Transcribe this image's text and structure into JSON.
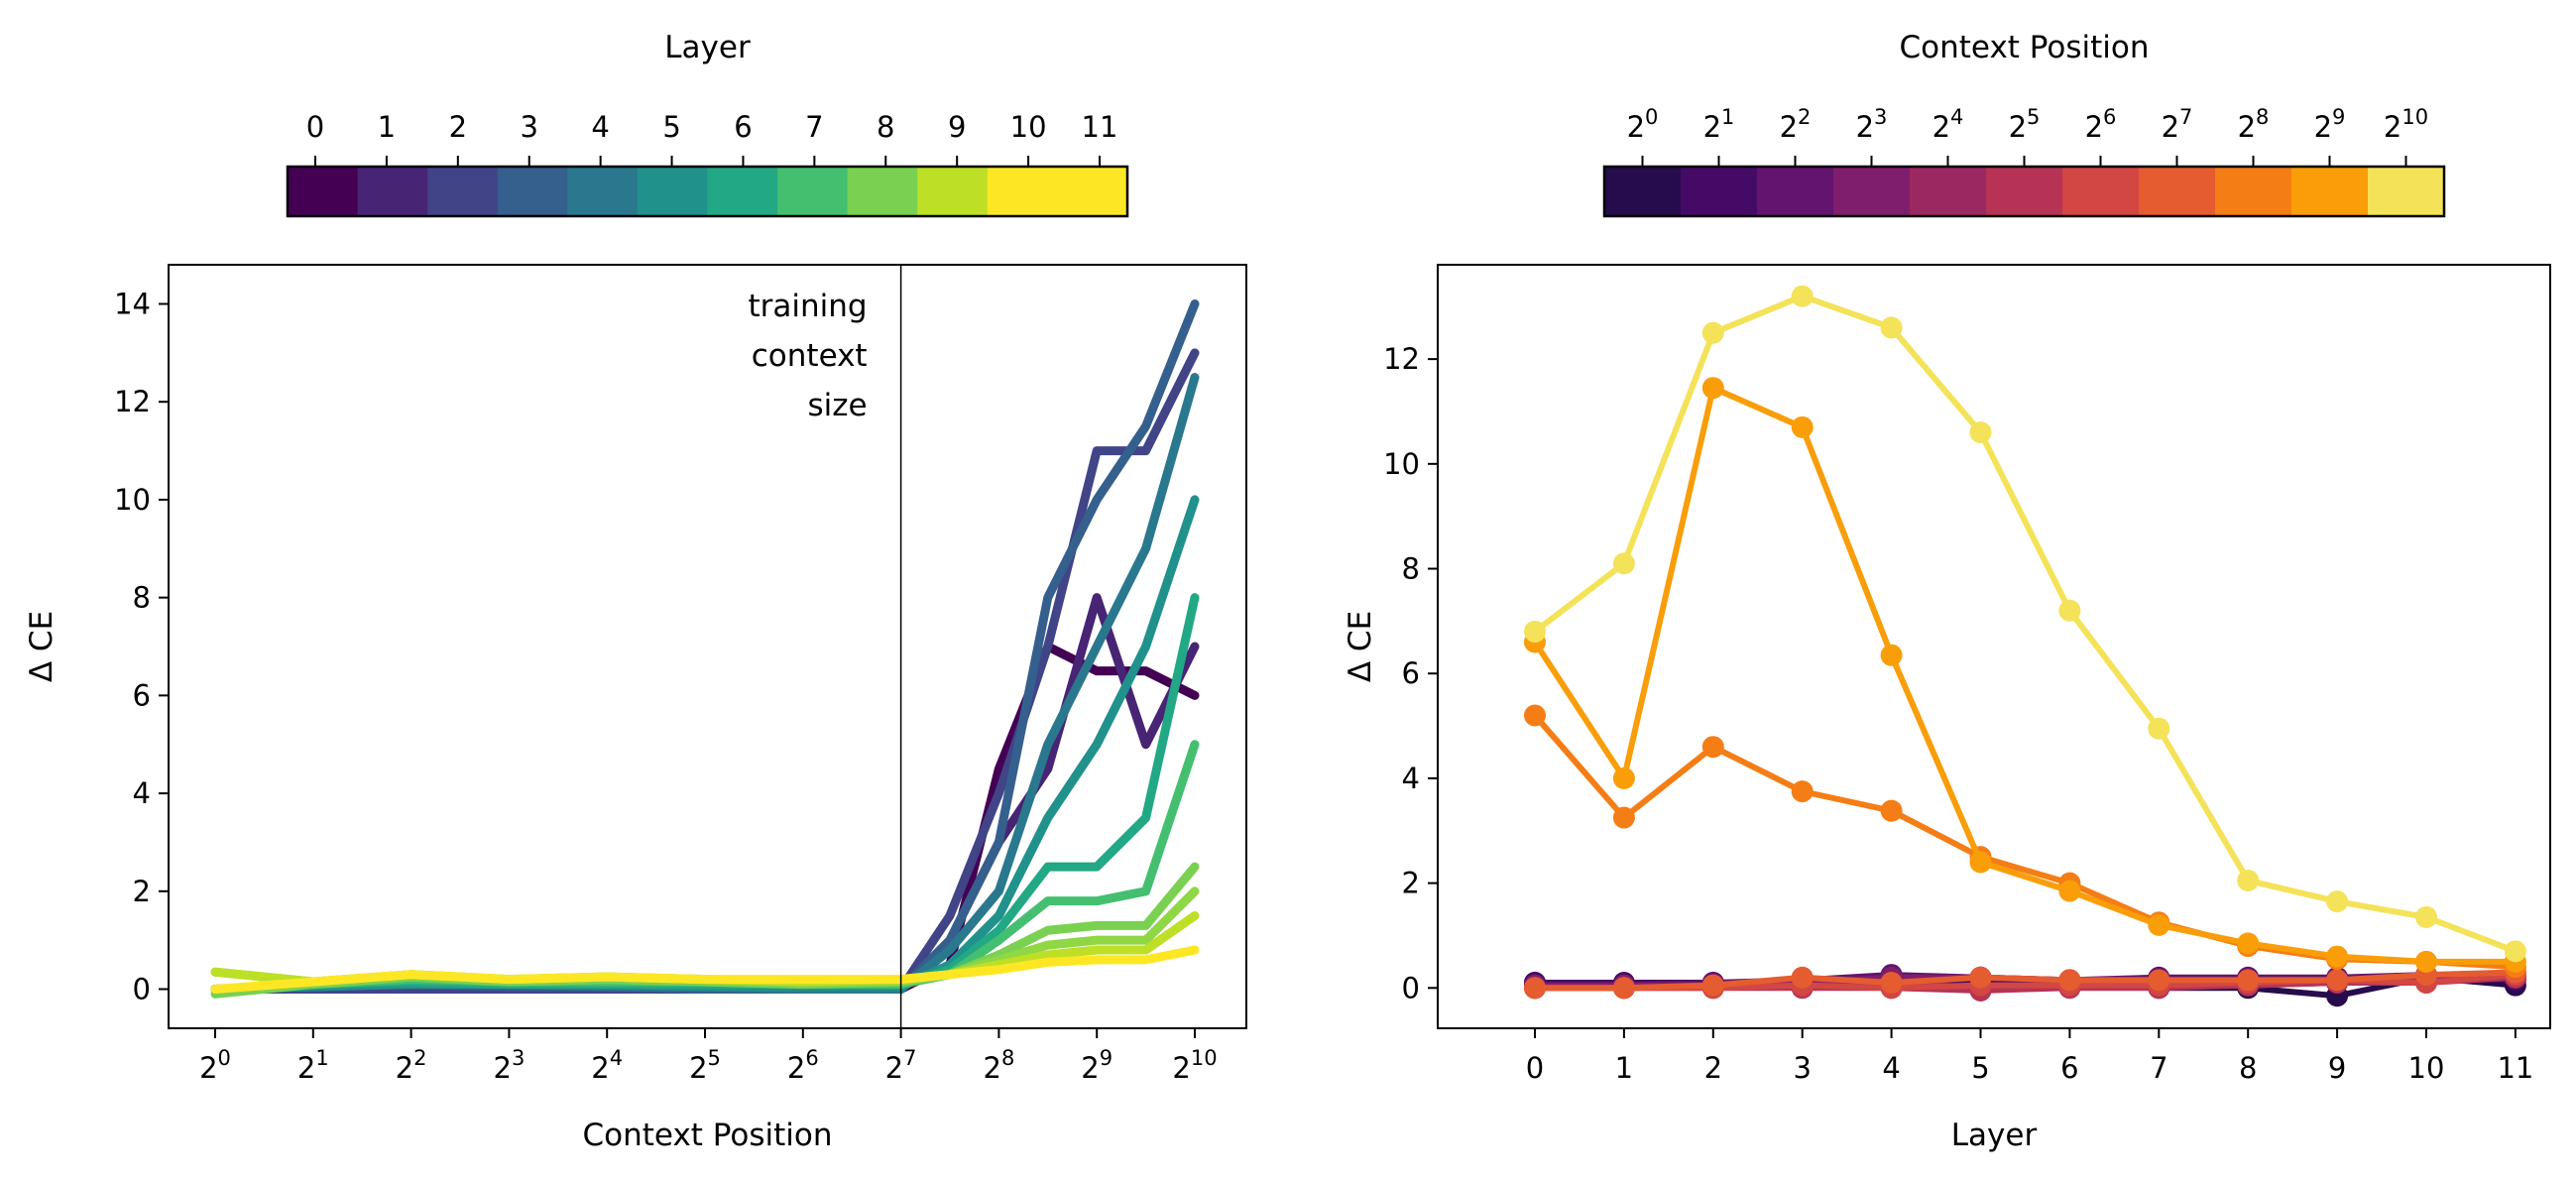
{
  "chart_data": [
    {
      "type": "line",
      "xlabel": "Context Position",
      "ylabel": "Δ CE",
      "xscale": "log2",
      "xlim": [
        0.7,
        1450
      ],
      "ylim": [
        -0.8,
        14.8
      ],
      "xticks": [
        1,
        2,
        4,
        8,
        16,
        32,
        64,
        128,
        256,
        512,
        1024
      ],
      "xtick_labels": [
        "2^0",
        "2^1",
        "2^2",
        "2^3",
        "2^4",
        "2^5",
        "2^6",
        "2^7",
        "2^8",
        "2^9",
        "2^10"
      ],
      "yticks": [
        0,
        2,
        4,
        6,
        8,
        10,
        12,
        14
      ],
      "grid": false,
      "annotation": {
        "text": [
          "training",
          "context",
          "size"
        ],
        "x": 128
      },
      "colorbar": {
        "title": "Layer",
        "labels": [
          "0",
          "1",
          "2",
          "3",
          "4",
          "5",
          "6",
          "7",
          "8",
          "9",
          "10",
          "11"
        ],
        "colormap": "viridis",
        "colors": [
          "#440154",
          "#482475",
          "#414487",
          "#355f8d",
          "#2a788e",
          "#21918c",
          "#22a884",
          "#44bf70",
          "#7ad151",
          "#bddf26",
          "#fde725",
          "#fde725"
        ]
      },
      "x": [
        1,
        2,
        4,
        8,
        16,
        32,
        64,
        128,
        181,
        256,
        362,
        512,
        724,
        1024
      ],
      "series": [
        {
          "layer": 0,
          "color": "#440154",
          "values": [
            0,
            0,
            0,
            0,
            0,
            0,
            0,
            0,
            0.5,
            4.5,
            7,
            6.5,
            6.5,
            6
          ]
        },
        {
          "layer": 1,
          "color": "#482475",
          "values": [
            0,
            0,
            0,
            0,
            0,
            0,
            0,
            0,
            1,
            3,
            4.5,
            8,
            5,
            7
          ]
        },
        {
          "layer": 2,
          "color": "#414487",
          "values": [
            0,
            0,
            0,
            0,
            0,
            0,
            0,
            0,
            1.5,
            4,
            7,
            11,
            11,
            13
          ]
        },
        {
          "layer": 3,
          "color": "#355f8d",
          "values": [
            0,
            0.05,
            0.1,
            0.05,
            0.05,
            0,
            0,
            0,
            1,
            3,
            8,
            10,
            11.5,
            14
          ]
        },
        {
          "layer": 4,
          "color": "#2a788e",
          "values": [
            0,
            0.05,
            0.1,
            0.1,
            0.05,
            0.05,
            0,
            0,
            0.8,
            2,
            5,
            7,
            9,
            12.5
          ]
        },
        {
          "layer": 5,
          "color": "#21918c",
          "values": [
            0,
            0.05,
            0.1,
            0.1,
            0.1,
            0.05,
            0.05,
            0.05,
            0.5,
            1.5,
            3.5,
            5,
            7,
            10
          ]
        },
        {
          "layer": 6,
          "color": "#22a884",
          "values": [
            0,
            0.1,
            0.15,
            0.1,
            0.1,
            0.1,
            0.1,
            0.1,
            0.4,
            1.2,
            2.5,
            2.5,
            3.5,
            8
          ]
        },
        {
          "layer": 7,
          "color": "#44bf70",
          "values": [
            0,
            0.1,
            0.2,
            0.15,
            0.15,
            0.15,
            0.1,
            0.1,
            0.3,
            1,
            1.8,
            1.8,
            2,
            5
          ]
        },
        {
          "layer": 8,
          "color": "#7ad151",
          "values": [
            -0.1,
            0.1,
            0.25,
            0.15,
            0.2,
            0.15,
            0.1,
            0.15,
            0.3,
            0.7,
            1.2,
            1.3,
            1.3,
            2.5
          ]
        },
        {
          "layer": 9,
          "color": "#8fd744",
          "values": [
            0.35,
            0.15,
            0.3,
            0.2,
            0.25,
            0.2,
            0.15,
            0.15,
            0.3,
            0.6,
            0.9,
            1,
            1,
            2
          ]
        },
        {
          "layer": 10,
          "color": "#bddf26",
          "values": [
            0.35,
            0.15,
            0.3,
            0.2,
            0.25,
            0.2,
            0.15,
            0.2,
            0.3,
            0.5,
            0.7,
            0.8,
            0.8,
            1.5
          ]
        },
        {
          "layer": 11,
          "color": "#fde725",
          "values": [
            0,
            0.15,
            0.3,
            0.2,
            0.25,
            0.2,
            0.2,
            0.2,
            0.3,
            0.4,
            0.55,
            0.6,
            0.6,
            0.8
          ]
        }
      ]
    },
    {
      "type": "line",
      "xlabel": "Layer",
      "ylabel": "Δ CE",
      "xlim": [
        -0.55,
        11.4
      ],
      "ylim": [
        -0.77,
        13.8
      ],
      "xticks": [
        0,
        1,
        2,
        3,
        4,
        5,
        6,
        7,
        8,
        9,
        10,
        11
      ],
      "yticks": [
        0,
        2,
        4,
        6,
        8,
        10,
        12
      ],
      "grid": false,
      "markers": true,
      "colorbar": {
        "title": "Context Position",
        "labels": [
          "2^0",
          "2^1",
          "2^2",
          "2^3",
          "2^4",
          "2^5",
          "2^6",
          "2^7",
          "2^8",
          "2^9",
          "2^10"
        ],
        "colormap": "inferno",
        "colors": [
          "#260c4c",
          "#450a65",
          "#62146e",
          "#7f1e6c",
          "#9c2862",
          "#b63355",
          "#d24644",
          "#e55c30",
          "#f57d15",
          "#f99d09",
          "#f4e259"
        ]
      },
      "x": [
        0,
        1,
        2,
        3,
        4,
        5,
        6,
        7,
        8,
        9,
        10,
        11
      ],
      "series": [
        {
          "position": "2^0",
          "color": "#260c4c",
          "values": [
            0.1,
            0.05,
            0.05,
            0.05,
            0.05,
            0.05,
            0.05,
            0,
            0,
            -0.15,
            0.2,
            0.05
          ]
        },
        {
          "position": "2^1",
          "color": "#450a65",
          "values": [
            0.1,
            0.1,
            0.1,
            0.1,
            0.15,
            0.1,
            0.1,
            0.1,
            0.1,
            0.1,
            0.2,
            0.15
          ]
        },
        {
          "position": "2^2",
          "color": "#62146e",
          "values": [
            0.05,
            0.05,
            0.1,
            0.15,
            0.25,
            0.2,
            0.15,
            0.2,
            0.2,
            0.2,
            0.25,
            0.2
          ]
        },
        {
          "position": "2^3",
          "color": "#7f1e6c",
          "values": [
            0.05,
            0.05,
            0.05,
            0.1,
            0.2,
            0.2,
            0.15,
            0.15,
            0.15,
            0.15,
            0.2,
            0.2
          ]
        },
        {
          "position": "2^4",
          "color": "#9c2862",
          "values": [
            0,
            0,
            0.05,
            0.05,
            0.1,
            0,
            0.05,
            0.05,
            0.05,
            0.1,
            0.15,
            0.2
          ]
        },
        {
          "position": "2^5",
          "color": "#b63355",
          "values": [
            0,
            0,
            0,
            0,
            0,
            -0.05,
            0,
            0,
            0.05,
            0.1,
            0.1,
            0.2
          ]
        },
        {
          "position": "2^6",
          "color": "#d24644",
          "values": [
            0,
            0,
            0,
            0.05,
            0,
            0.05,
            0.05,
            0.05,
            0.1,
            0.15,
            0.1,
            0.25
          ]
        },
        {
          "position": "2^7",
          "color": "#e55c30",
          "values": [
            0,
            0,
            0.05,
            0.2,
            0.1,
            0.2,
            0.15,
            0.15,
            0.15,
            0.15,
            0.25,
            0.3
          ]
        },
        {
          "position": "2^8",
          "color": "#f57d15",
          "values": [
            5.2,
            3.25,
            4.6,
            3.75,
            3.38,
            2.5,
            2.0,
            1.25,
            0.8,
            0.55,
            0.5,
            0.4
          ]
        },
        {
          "position": "2^9",
          "color": "#f99d09",
          "values": [
            6.6,
            4.0,
            11.45,
            10.7,
            6.35,
            2.4,
            1.85,
            1.2,
            0.85,
            0.6,
            0.5,
            0.5
          ]
        },
        {
          "position": "2^10",
          "color": "#f4e259",
          "values": [
            6.8,
            8.1,
            12.5,
            13.2,
            12.6,
            10.6,
            7.2,
            4.95,
            2.05,
            1.65,
            1.35,
            0.7
          ]
        }
      ]
    }
  ]
}
